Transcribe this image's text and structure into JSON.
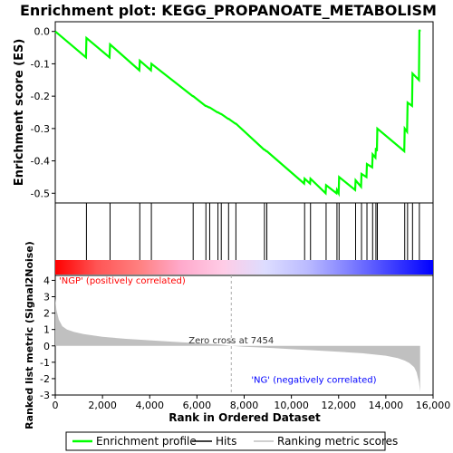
{
  "chart_data": {
    "type": "line",
    "title": "Enrichment plot: KEGG_PROPANOATE_METABOLISM",
    "xlabel": "Rank in Ordered Dataset",
    "xlim": [
      0,
      16000
    ],
    "x_ticks": [
      0,
      2000,
      4000,
      6000,
      8000,
      10000,
      12000,
      14000,
      16000
    ],
    "x_tick_labels": [
      "0",
      "2,000",
      "4,000",
      "6,000",
      "8,000",
      "10,000",
      "12,000",
      "14,000",
      "16,000"
    ],
    "es_panel": {
      "ylabel": "Enrichment score (ES)",
      "ylim": [
        -0.53,
        0.03
      ],
      "y_ticks": [
        0.0,
        -0.1,
        -0.2,
        -0.3,
        -0.4,
        -0.5
      ],
      "y_tick_labels": [
        "0.0",
        "-0.1",
        "-0.2",
        "-0.3",
        "-0.4",
        "-0.5"
      ],
      "grid": false,
      "series": [
        {
          "name": "Enrichment profile",
          "color": "#00ff00",
          "x": [
            0,
            1300,
            1320,
            2300,
            2320,
            3560,
            3580,
            4050,
            4070,
            5820,
            5840,
            6360,
            6380,
            6520,
            6540,
            6870,
            6890,
            7010,
            7030,
            7320,
            7340,
            7630,
            7650,
            8840,
            8860,
            8940,
            8960,
            10540,
            10560,
            10790,
            10810,
            11450,
            11470,
            11910,
            11930,
            12000,
            12020,
            12700,
            12720,
            12950,
            12970,
            13180,
            13200,
            13420,
            13440,
            13560,
            13580,
            13620,
            13640,
            14780,
            14800,
            14900,
            14920,
            15110,
            15130,
            15400,
            15420,
            15450
          ],
          "y": [
            0.0,
            -0.08,
            -0.02,
            -0.08,
            -0.04,
            -0.12,
            -0.09,
            -0.12,
            -0.1,
            -0.2,
            -0.2,
            -0.23,
            -0.23,
            -0.235,
            -0.235,
            -0.25,
            -0.25,
            -0.255,
            -0.255,
            -0.27,
            -0.27,
            -0.285,
            -0.285,
            -0.365,
            -0.365,
            -0.37,
            -0.37,
            -0.47,
            -0.455,
            -0.47,
            -0.455,
            -0.5,
            -0.475,
            -0.5,
            -0.49,
            -0.5,
            -0.45,
            -0.49,
            -0.46,
            -0.48,
            -0.44,
            -0.45,
            -0.41,
            -0.42,
            -0.38,
            -0.39,
            -0.36,
            -0.37,
            -0.3,
            -0.37,
            -0.3,
            -0.31,
            -0.22,
            -0.23,
            -0.13,
            -0.15,
            0.005,
            0.0
          ]
        }
      ]
    },
    "hits_panel": {
      "series_name": "Hits",
      "color": "#000000",
      "positions": [
        1320,
        2320,
        3580,
        4070,
        5840,
        6380,
        6540,
        6890,
        7030,
        7340,
        7650,
        8860,
        8960,
        10560,
        10810,
        11470,
        11930,
        12020,
        12720,
        12970,
        13200,
        13440,
        13580,
        13640,
        14800,
        14920,
        15130,
        15420
      ],
      "color_bar_stops": [
        "#ff0000",
        "#ff5555",
        "#ff8080",
        "#ffaacc",
        "#ffcce6",
        "#ddddff",
        "#bbbbff",
        "#8080ff",
        "#4040ff",
        "#0000ff"
      ]
    },
    "metric_panel": {
      "ylabel": "Ranked list metric (Signal2Noise)",
      "ylim": [
        -3,
        4.3
      ],
      "y_ticks": [
        4,
        3,
        2,
        1,
        0,
        -1,
        -2,
        -3
      ],
      "y_tick_labels": [
        "4",
        "3",
        "2",
        "1",
        "0",
        "-1",
        "-2",
        "-3"
      ],
      "series_name": "Ranking metric scores",
      "color": "#c0c0c0",
      "x": [
        0,
        50,
        150,
        300,
        500,
        800,
        1200,
        2000,
        3000,
        4000,
        5000,
        6000,
        7000,
        7454,
        8000,
        9000,
        10000,
        11000,
        12000,
        13000,
        14000,
        14500,
        14800,
        15000,
        15200,
        15300,
        15400,
        15450
      ],
      "y": [
        2.9,
        2.2,
        1.6,
        1.2,
        1.0,
        0.85,
        0.72,
        0.55,
        0.43,
        0.34,
        0.25,
        0.17,
        0.08,
        0.0,
        -0.05,
        -0.12,
        -0.2,
        -0.28,
        -0.36,
        -0.45,
        -0.6,
        -0.75,
        -0.9,
        -1.05,
        -1.3,
        -1.6,
        -2.2,
        -2.8
      ],
      "zero_cross_label": "Zero cross at 7454",
      "zero_cross_x": 7454,
      "pos_label": "'NGP' (positively correlated)",
      "pos_color": "#ff0000",
      "neg_label": "'NG' (negatively correlated)",
      "neg_color": "#0000ff"
    },
    "legend": {
      "placement": "bottom",
      "entries": [
        {
          "label": "Enrichment profile",
          "color": "#00ff00"
        },
        {
          "label": "Hits",
          "color": "#000000"
        },
        {
          "label": "Ranking metric scores",
          "color": "#c0c0c0"
        }
      ]
    }
  }
}
